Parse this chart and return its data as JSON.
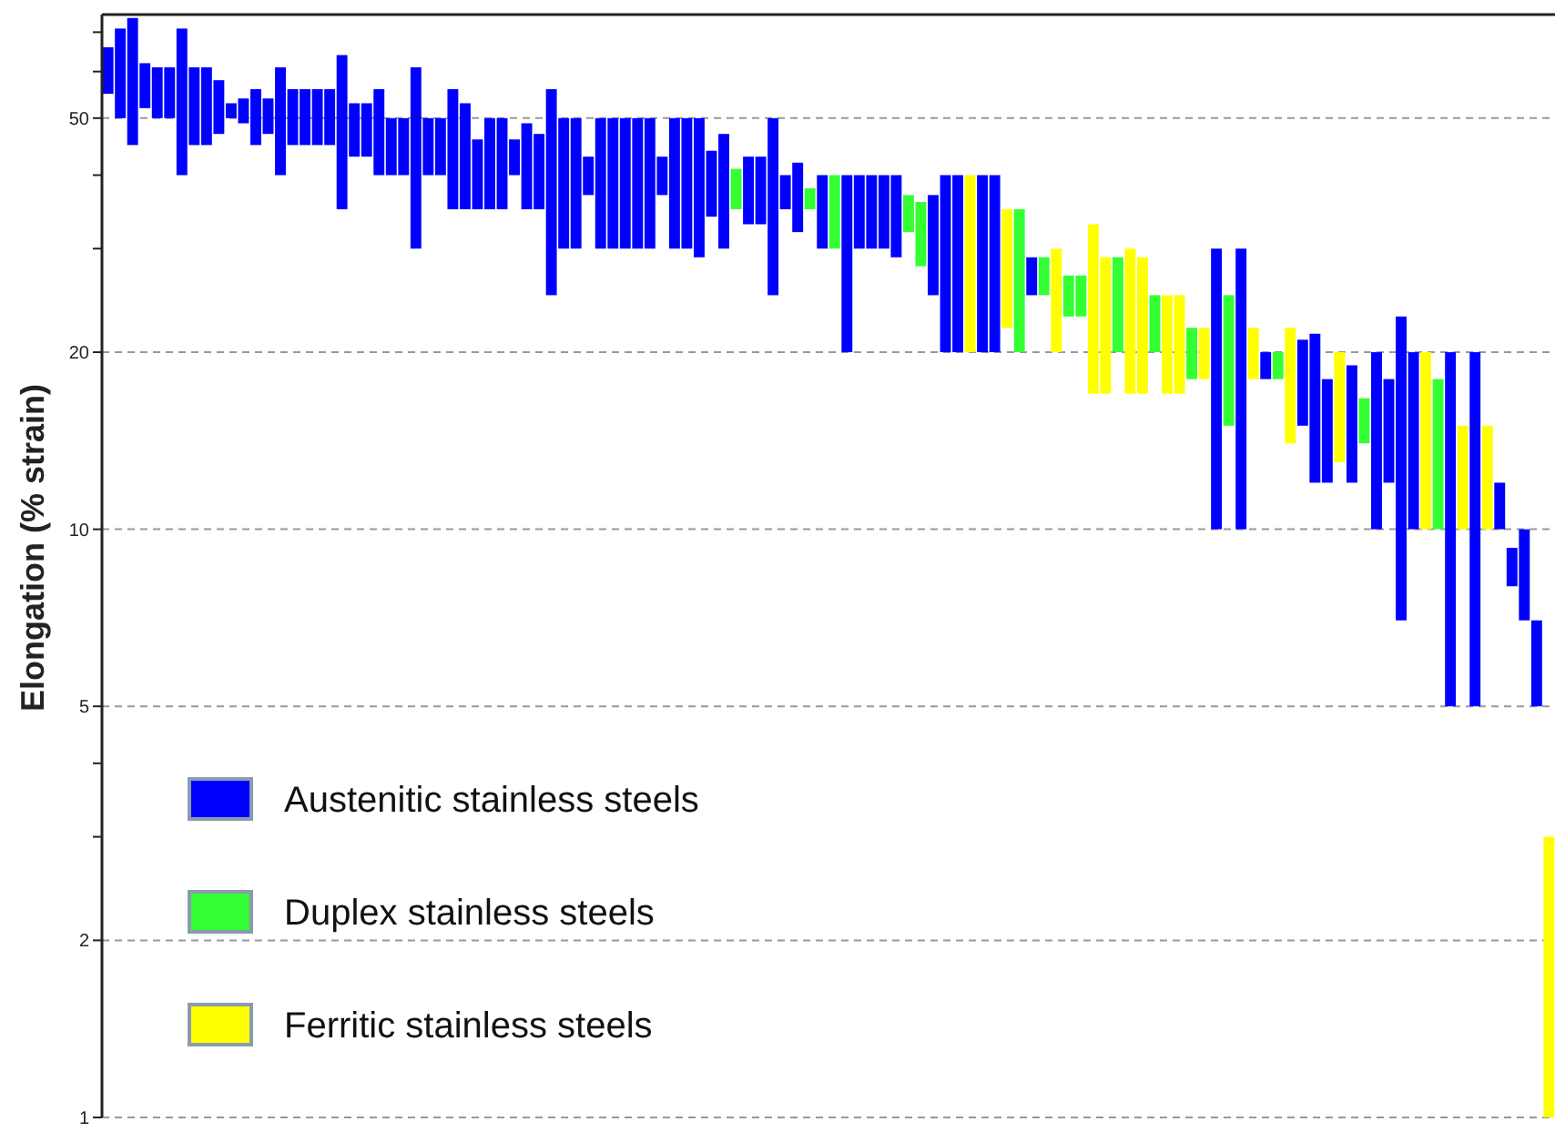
{
  "chart_data": {
    "type": "bar",
    "ylabel": "Elongation (% strain)",
    "categories": [
      null,
      null,
      null,
      null,
      null,
      null,
      null,
      null,
      null,
      null,
      null,
      null,
      null,
      null,
      null,
      null,
      null,
      null,
      null,
      null,
      null,
      null,
      null,
      null,
      null,
      null,
      null,
      null,
      null,
      null,
      null,
      null,
      null,
      null,
      null,
      null,
      null,
      null,
      null,
      null,
      null,
      null,
      null,
      null,
      null,
      null,
      null,
      null,
      null,
      null,
      null,
      null,
      null,
      null,
      null,
      null,
      null,
      null,
      null,
      null,
      null,
      null,
      null,
      null,
      null,
      null,
      null,
      null,
      null,
      null,
      null,
      null,
      null,
      null,
      null,
      null,
      null,
      null,
      null,
      null,
      null,
      null,
      null,
      null,
      null,
      null,
      null,
      null,
      null,
      null,
      null,
      null,
      null,
      null,
      null,
      null,
      null,
      null,
      null,
      null,
      null,
      null,
      null,
      null,
      null,
      null,
      null,
      null,
      null,
      null,
      null,
      null,
      null,
      null,
      null,
      null,
      null,
      null
    ],
    "series": [
      {
        "name": "Austenitic stainless steels",
        "color": "#0000ff",
        "base": [
          55,
          50,
          45,
          52,
          50,
          50,
          40,
          45,
          45,
          47,
          50,
          49,
          45,
          47,
          40,
          45,
          45,
          45,
          45,
          35,
          43,
          43,
          40,
          40,
          40,
          30,
          40,
          40,
          35,
          35,
          35,
          35,
          35,
          40,
          35,
          35,
          25,
          30,
          30,
          37,
          30,
          30,
          30,
          30,
          30,
          37,
          30,
          30,
          29,
          34,
          30,
          null,
          33,
          33,
          25,
          35,
          32,
          null,
          30,
          null,
          20,
          30,
          30,
          30,
          29,
          null,
          null,
          25,
          20,
          20,
          null,
          20,
          20,
          null,
          null,
          25,
          null,
          null,
          null,
          null,
          null,
          null,
          null,
          null,
          null,
          null,
          null,
          null,
          null,
          null,
          10,
          null,
          10,
          null,
          18,
          null,
          null,
          15,
          12,
          12,
          null,
          12,
          null,
          10,
          12,
          7,
          10,
          null,
          null,
          5,
          null,
          5,
          null,
          10,
          8,
          7,
          5,
          null
        ],
        "values": [
          11,
          21,
          29,
          10,
          11,
          11,
          31,
          16,
          16,
          11,
          3,
          5,
          11,
          7,
          21,
          11,
          11,
          11,
          11,
          29,
          10,
          10,
          16,
          10,
          10,
          31,
          10,
          10,
          21,
          18,
          11,
          15,
          15,
          6,
          14,
          12,
          31,
          20,
          20,
          6,
          20,
          20,
          20,
          20,
          20,
          6,
          20,
          20,
          21,
          10,
          17,
          null,
          10,
          10,
          25,
          5,
          10,
          null,
          10,
          null,
          20,
          10,
          10,
          10,
          11,
          null,
          null,
          12,
          20,
          20,
          null,
          20,
          20,
          null,
          null,
          4,
          null,
          null,
          null,
          null,
          null,
          null,
          null,
          null,
          null,
          null,
          null,
          null,
          null,
          null,
          20,
          null,
          20,
          null,
          2,
          null,
          null,
          6,
          9.5,
          6,
          null,
          7,
          null,
          10,
          6,
          16,
          10,
          null,
          null,
          15,
          null,
          15,
          null,
          2,
          1.3,
          3,
          2,
          null
        ]
      },
      {
        "name": "Duplex stainless steels",
        "color": "#33ff33",
        "base": [
          null,
          null,
          null,
          null,
          null,
          null,
          null,
          null,
          null,
          null,
          null,
          null,
          null,
          null,
          null,
          null,
          null,
          null,
          null,
          null,
          null,
          null,
          null,
          null,
          null,
          null,
          null,
          null,
          null,
          null,
          null,
          null,
          null,
          null,
          null,
          null,
          null,
          null,
          null,
          null,
          null,
          null,
          null,
          null,
          null,
          null,
          null,
          null,
          null,
          null,
          null,
          35,
          null,
          null,
          null,
          null,
          null,
          35,
          null,
          30,
          null,
          null,
          null,
          null,
          null,
          32,
          28,
          null,
          null,
          null,
          null,
          null,
          null,
          null,
          20,
          null,
          25,
          null,
          23,
          23,
          null,
          null,
          20,
          null,
          null,
          20,
          null,
          null,
          18,
          null,
          null,
          15,
          null,
          null,
          null,
          18,
          null,
          null,
          null,
          null,
          null,
          null,
          14,
          null,
          null,
          null,
          null,
          null,
          10,
          null,
          null,
          null,
          null,
          null,
          null,
          null,
          null,
          null
        ],
        "values": [
          null,
          null,
          null,
          null,
          null,
          null,
          null,
          null,
          null,
          null,
          null,
          null,
          null,
          null,
          null,
          null,
          null,
          null,
          null,
          null,
          null,
          null,
          null,
          null,
          null,
          null,
          null,
          null,
          null,
          null,
          null,
          null,
          null,
          null,
          null,
          null,
          null,
          null,
          null,
          null,
          null,
          null,
          null,
          null,
          null,
          null,
          null,
          null,
          null,
          null,
          null,
          6,
          null,
          null,
          null,
          null,
          null,
          3,
          null,
          10,
          null,
          null,
          null,
          null,
          null,
          5,
          8,
          null,
          null,
          null,
          null,
          null,
          null,
          null,
          15,
          null,
          4,
          null,
          4,
          4,
          null,
          null,
          9,
          null,
          null,
          5,
          null,
          null,
          4,
          null,
          null,
          10,
          null,
          null,
          null,
          2,
          null,
          null,
          null,
          null,
          null,
          null,
          2.7,
          null,
          null,
          null,
          null,
          null,
          8,
          null,
          null,
          null,
          null,
          null,
          null,
          null,
          null,
          null
        ]
      },
      {
        "name": "Ferritic stainless steels",
        "color": "#ffff00",
        "base": [
          null,
          null,
          null,
          null,
          null,
          null,
          null,
          null,
          null,
          null,
          null,
          null,
          null,
          null,
          null,
          null,
          null,
          null,
          null,
          null,
          null,
          null,
          null,
          null,
          null,
          null,
          null,
          null,
          null,
          null,
          null,
          null,
          null,
          null,
          null,
          null,
          null,
          null,
          null,
          null,
          null,
          null,
          null,
          null,
          null,
          null,
          null,
          null,
          null,
          null,
          null,
          null,
          null,
          null,
          null,
          null,
          null,
          null,
          null,
          null,
          null,
          null,
          null,
          null,
          null,
          null,
          null,
          null,
          null,
          null,
          20,
          null,
          null,
          22,
          null,
          null,
          null,
          20,
          null,
          null,
          17,
          17,
          null,
          17,
          17,
          null,
          17,
          17,
          null,
          18,
          null,
          null,
          null,
          18,
          null,
          null,
          14,
          null,
          null,
          null,
          13,
          null,
          null,
          null,
          null,
          null,
          null,
          10,
          null,
          null,
          10,
          null,
          10,
          null,
          null,
          null,
          null,
          1
        ],
        "values": [
          null,
          null,
          null,
          null,
          null,
          null,
          null,
          null,
          null,
          null,
          null,
          null,
          null,
          null,
          null,
          null,
          null,
          null,
          null,
          null,
          null,
          null,
          null,
          null,
          null,
          null,
          null,
          null,
          null,
          null,
          null,
          null,
          null,
          null,
          null,
          null,
          null,
          null,
          null,
          null,
          null,
          null,
          null,
          null,
          null,
          null,
          null,
          null,
          null,
          null,
          null,
          null,
          null,
          null,
          null,
          null,
          null,
          null,
          null,
          null,
          null,
          null,
          null,
          null,
          null,
          null,
          null,
          null,
          null,
          null,
          20,
          null,
          null,
          13,
          null,
          null,
          null,
          10,
          null,
          null,
          16,
          12,
          null,
          13,
          12,
          null,
          8,
          8,
          null,
          4,
          null,
          null,
          null,
          4,
          null,
          null,
          8,
          null,
          null,
          null,
          7,
          null,
          null,
          null,
          null,
          null,
          null,
          10,
          null,
          null,
          5,
          null,
          5,
          null,
          null,
          null,
          null,
          2
        ]
      }
    ],
    "log": true,
    "ylim": [
      1,
      75
    ],
    "yticks": [
      1,
      2,
      {
        "value": 3,
        "label": null
      },
      {
        "value": 4,
        "label": null
      },
      5,
      10,
      20,
      {
        "value": 30,
        "label": null
      },
      {
        "value": 40,
        "label": null
      },
      50,
      {
        "value": 60,
        "label": null
      },
      {
        "value": 70,
        "label": null
      }
    ],
    "grid": "y",
    "legend": "bottom left"
  }
}
